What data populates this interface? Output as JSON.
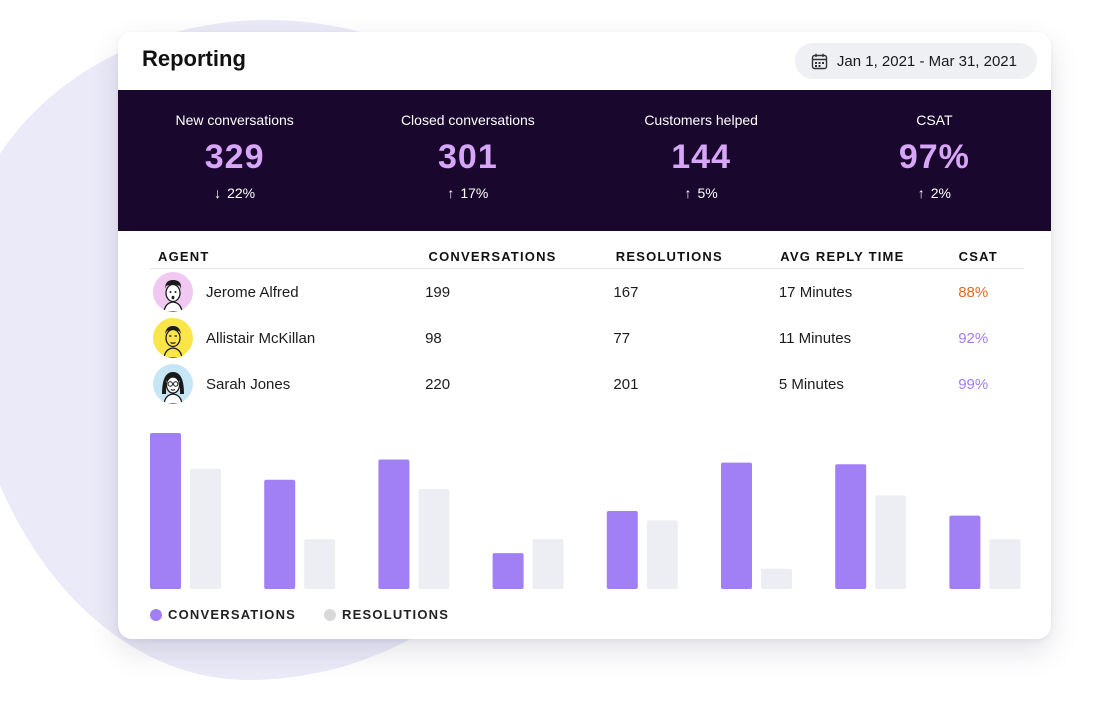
{
  "header": {
    "title": "Reporting",
    "date_range": "Jan 1, 2021 - Mar 31, 2021"
  },
  "stats": [
    {
      "label": "New conversations",
      "value": "329",
      "change": "22%",
      "direction": "down"
    },
    {
      "label": "Closed conversations",
      "value": "301",
      "change": "17%",
      "direction": "up"
    },
    {
      "label": "Customers helped",
      "value": "144",
      "change": "5%",
      "direction": "up"
    },
    {
      "label": "CSAT",
      "value": "97%",
      "change": "2%",
      "direction": "up"
    }
  ],
  "table": {
    "headers": [
      "AGENT",
      "CONVERSATIONS",
      "RESOLUTIONS",
      "AVG REPLY TIME",
      "CSAT"
    ],
    "rows": [
      {
        "agent": "Jerome Alfred",
        "conversations": "199",
        "resolutions": "167",
        "avg_reply": "17 Minutes",
        "csat": "88%",
        "csat_color": "#e8671f",
        "avatar_color": "#f0c8f2"
      },
      {
        "agent": "Allistair McKillan",
        "conversations": "98",
        "resolutions": "77",
        "avg_reply": "11 Minutes",
        "csat": "92%",
        "csat_color": "#a27cf2",
        "avatar_color": "#fbe64a"
      },
      {
        "agent": "Sarah Jones",
        "conversations": "220",
        "resolutions": "201",
        "avg_reply": "5 Minutes",
        "csat": "99%",
        "csat_color": "#a27cf2",
        "avatar_color": "#c6e6f6"
      }
    ]
  },
  "chart_data": {
    "type": "bar",
    "series": [
      {
        "name": "CONVERSATIONS",
        "color": "#a080f4",
        "values": [
          100,
          70,
          83,
          23,
          50,
          81,
          80,
          47
        ]
      },
      {
        "name": "RESOLUTIONS",
        "color": "#eceef3",
        "values": [
          77,
          32,
          64,
          32,
          44,
          13,
          60,
          32
        ]
      }
    ],
    "ylim": [
      0,
      100
    ],
    "grid": false,
    "legend_position": "bottom-left"
  },
  "colors": {
    "stats_background": "#19072e",
    "stat_value": "#d8a6f8",
    "accent": "#a080f4"
  },
  "icons": {
    "date": "calendar-icon"
  }
}
